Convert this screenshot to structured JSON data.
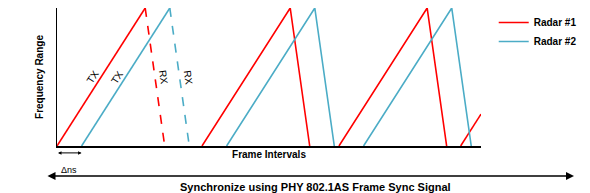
{
  "chart_data": {
    "type": "line",
    "xlabel": "Frame Intervals",
    "ylabel": "Frequency Range",
    "xlim": [
      0,
      100
    ],
    "ylim": [
      0,
      100
    ],
    "tick_labels": false,
    "grid": false,
    "legend": "upper right",
    "offset_label": "Δns",
    "footer": "Synchronize using PHY 802.1AS Frame Sync Signal",
    "series": [
      {
        "name": "Radar #1",
        "color": "#ff0000",
        "line_style": "solid",
        "label": "TX",
        "x": [
          0,
          20.8,
          27,
          34.2,
          55.0,
          59.6,
          63,
          66.5,
          87.3,
          91.9,
          93.5,
          95.2,
          100
        ],
        "values": [
          0,
          100,
          null,
          0,
          100,
          0,
          null,
          0,
          100,
          0,
          null,
          0,
          23.1
        ]
      },
      {
        "color": "#ff0000",
        "line_style": "dashed",
        "label": "RX",
        "x": [
          20.8,
          25.4
        ],
        "values": [
          100,
          0
        ]
      },
      {
        "name": "Radar #2",
        "color": "#4bacc6",
        "line_style": "solid",
        "label": "TX",
        "x": [
          5.8,
          26.6,
          33,
          40.0,
          60.8,
          65.4,
          69,
          72.3,
          93.1,
          97.7
        ],
        "values": [
          0,
          100,
          null,
          0,
          100,
          0,
          null,
          0,
          100,
          0
        ]
      },
      {
        "color": "#4bacc6",
        "line_style": "dashed",
        "label": "RX",
        "x": [
          26.6,
          31.2
        ],
        "values": [
          100,
          0
        ]
      }
    ]
  }
}
